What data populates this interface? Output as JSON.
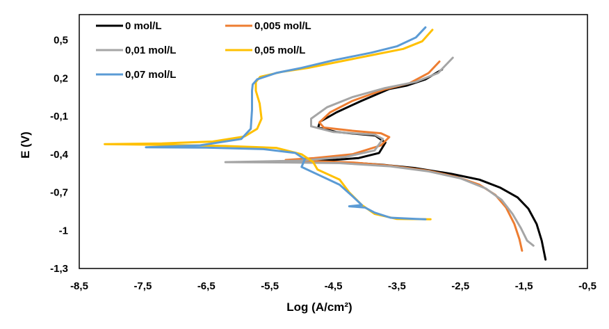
{
  "chart_data": {
    "type": "line",
    "title": "",
    "xlabel": "Log (A/cm²)",
    "ylabel": "E (V)",
    "xlim": [
      -8.5,
      -0.5
    ],
    "ylim": [
      -1.3,
      0.7
    ],
    "x_ticks": [
      -8.5,
      -7.5,
      -6.5,
      -5.5,
      -4.5,
      -3.5,
      -2.5,
      -1.5,
      -0.5
    ],
    "x_tick_labels": [
      "-8,5",
      "-7,5",
      "-6,5",
      "-5,5",
      "-4,5",
      "-3,5",
      "-2,5",
      "-1,5",
      "-0,5"
    ],
    "y_ticks": [
      0.5,
      0.2,
      -0.1,
      -0.4,
      -0.7,
      -1,
      -1.3
    ],
    "y_tick_labels": [
      "0,5",
      "0,2",
      "-0,1",
      "-0,4",
      "-0,7",
      "-1",
      "-1,3"
    ],
    "grid": false,
    "legend_position": "top-left",
    "series": [
      {
        "name": "0 mol/L",
        "color": "#000000",
        "points": [
          [
            -2.79,
            0.267
          ],
          [
            -3.05,
            0.19
          ],
          [
            -3.35,
            0.14
          ],
          [
            -3.62,
            0.114
          ],
          [
            -4.06,
            0.02
          ],
          [
            -4.45,
            -0.07
          ],
          [
            -4.71,
            -0.144
          ],
          [
            -4.74,
            -0.19
          ],
          [
            -4.45,
            -0.225
          ],
          [
            -3.84,
            -0.253
          ],
          [
            -3.68,
            -0.308
          ],
          [
            -3.78,
            -0.39
          ],
          [
            -4.1,
            -0.43
          ],
          [
            -4.5,
            -0.445
          ],
          [
            -5.15,
            -0.456
          ],
          [
            -4.6,
            -0.462
          ],
          [
            -4.1,
            -0.47
          ],
          [
            -3.73,
            -0.483
          ],
          [
            -3.2,
            -0.51
          ],
          [
            -2.64,
            -0.555
          ],
          [
            -2.2,
            -0.6
          ],
          [
            -1.87,
            -0.664
          ],
          [
            -1.6,
            -0.74
          ],
          [
            -1.43,
            -0.829
          ],
          [
            -1.3,
            -0.95
          ],
          [
            -1.22,
            -1.08
          ],
          [
            -1.16,
            -1.23
          ]
        ]
      },
      {
        "name": "0,005 mol/L",
        "color": "#ED7D31",
        "points": [
          [
            -2.83,
            0.33
          ],
          [
            -3.0,
            0.24
          ],
          [
            -3.3,
            0.16
          ],
          [
            -3.7,
            0.11
          ],
          [
            -4.2,
            0.02
          ],
          [
            -4.55,
            -0.07
          ],
          [
            -4.72,
            -0.15
          ],
          [
            -4.65,
            -0.19
          ],
          [
            -4.2,
            -0.215
          ],
          [
            -3.75,
            -0.235
          ],
          [
            -3.62,
            -0.265
          ],
          [
            -3.75,
            -0.33
          ],
          [
            -4.2,
            -0.4
          ],
          [
            -4.8,
            -0.43
          ],
          [
            -5.25,
            -0.445
          ],
          [
            -4.8,
            -0.455
          ],
          [
            -4.2,
            -0.465
          ],
          [
            -3.6,
            -0.49
          ],
          [
            -3.0,
            -0.53
          ],
          [
            -2.55,
            -0.58
          ],
          [
            -2.2,
            -0.64
          ],
          [
            -1.95,
            -0.72
          ],
          [
            -1.78,
            -0.82
          ],
          [
            -1.65,
            -0.95
          ],
          [
            -1.57,
            -1.07
          ],
          [
            -1.53,
            -1.16
          ]
        ]
      },
      {
        "name": "0,01 mol/L",
        "color": "#A5A5A5",
        "points": [
          [
            -2.62,
            0.36
          ],
          [
            -2.85,
            0.24
          ],
          [
            -3.2,
            0.17
          ],
          [
            -3.7,
            0.12
          ],
          [
            -4.2,
            0.05
          ],
          [
            -4.6,
            -0.03
          ],
          [
            -4.85,
            -0.12
          ],
          [
            -4.85,
            -0.18
          ],
          [
            -4.5,
            -0.225
          ],
          [
            -3.85,
            -0.245
          ],
          [
            -3.72,
            -0.28
          ],
          [
            -3.85,
            -0.37
          ],
          [
            -4.3,
            -0.42
          ],
          [
            -5.0,
            -0.45
          ],
          [
            -6.2,
            -0.462
          ],
          [
            -5.2,
            -0.465
          ],
          [
            -4.4,
            -0.47
          ],
          [
            -3.6,
            -0.495
          ],
          [
            -3.0,
            -0.535
          ],
          [
            -2.5,
            -0.59
          ],
          [
            -2.1,
            -0.67
          ],
          [
            -1.85,
            -0.76
          ],
          [
            -1.68,
            -0.87
          ],
          [
            -1.55,
            -0.98
          ],
          [
            -1.45,
            -1.08
          ],
          [
            -1.35,
            -1.12
          ]
        ]
      },
      {
        "name": "0,05 mol/L",
        "color": "#FFC000",
        "points": [
          [
            -2.94,
            0.58
          ],
          [
            -3.1,
            0.49
          ],
          [
            -3.4,
            0.43
          ],
          [
            -3.9,
            0.38
          ],
          [
            -4.4,
            0.33
          ],
          [
            -4.9,
            0.28
          ],
          [
            -5.3,
            0.25
          ],
          [
            -5.65,
            0.21
          ],
          [
            -5.72,
            0.17
          ],
          [
            -5.72,
            0.1
          ],
          [
            -5.66,
            0.0
          ],
          [
            -5.63,
            -0.12
          ],
          [
            -5.7,
            -0.2
          ],
          [
            -5.9,
            -0.26
          ],
          [
            -6.4,
            -0.3
          ],
          [
            -7.2,
            -0.315
          ],
          [
            -8.1,
            -0.32
          ],
          [
            -7.2,
            -0.326
          ],
          [
            -6.2,
            -0.335
          ],
          [
            -5.4,
            -0.35
          ],
          [
            -5.0,
            -0.4
          ],
          [
            -4.82,
            -0.46
          ],
          [
            -4.75,
            -0.52
          ],
          [
            -4.4,
            -0.6
          ],
          [
            -4.25,
            -0.7
          ],
          [
            -4.05,
            -0.8
          ],
          [
            -3.85,
            -0.87
          ],
          [
            -3.5,
            -0.91
          ],
          [
            -2.97,
            -0.912
          ]
        ]
      },
      {
        "name": "0,07 mol/L",
        "color": "#5B9BD5",
        "points": [
          [
            -3.05,
            0.6
          ],
          [
            -3.2,
            0.52
          ],
          [
            -3.5,
            0.45
          ],
          [
            -3.9,
            0.4
          ],
          [
            -4.5,
            0.34
          ],
          [
            -5.0,
            0.28
          ],
          [
            -5.4,
            0.24
          ],
          [
            -5.7,
            0.19
          ],
          [
            -5.77,
            0.15
          ],
          [
            -5.78,
            0.1
          ],
          [
            -5.78,
            -0.05
          ],
          [
            -5.8,
            -0.2
          ],
          [
            -5.95,
            -0.28
          ],
          [
            -6.6,
            -0.33
          ],
          [
            -7.45,
            -0.345
          ],
          [
            -6.5,
            -0.348
          ],
          [
            -5.6,
            -0.36
          ],
          [
            -5.1,
            -0.39
          ],
          [
            -4.95,
            -0.44
          ],
          [
            -5.0,
            -0.5
          ],
          [
            -4.7,
            -0.57
          ],
          [
            -4.4,
            -0.64
          ],
          [
            -4.2,
            -0.73
          ],
          [
            -4.05,
            -0.8
          ],
          [
            -4.25,
            -0.81
          ],
          [
            -4.0,
            -0.82
          ],
          [
            -3.85,
            -0.86
          ],
          [
            -3.6,
            -0.9
          ],
          [
            -3.2,
            -0.91
          ],
          [
            -3.05,
            -0.912
          ]
        ]
      }
    ]
  }
}
